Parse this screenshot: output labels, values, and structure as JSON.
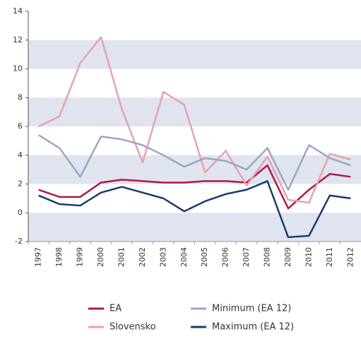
{
  "chart_data": {
    "type": "line",
    "categories": [
      "1997",
      "1998",
      "1999",
      "2000",
      "2001",
      "2002",
      "2003",
      "2004",
      "2005",
      "2006",
      "2007",
      "2008",
      "2009",
      "2010",
      "2011",
      "2012"
    ],
    "series": [
      {
        "name": "EA",
        "color": "#b0174c",
        "values": [
          1.6,
          1.1,
          1.1,
          2.1,
          2.3,
          2.2,
          2.1,
          2.1,
          2.2,
          2.2,
          2.1,
          3.3,
          0.3,
          1.6,
          2.7,
          2.5
        ]
      },
      {
        "name": "Slovensko",
        "color": "#e9a2ab",
        "values": [
          6.0,
          6.7,
          10.4,
          12.2,
          7.2,
          3.5,
          8.4,
          7.5,
          2.8,
          4.3,
          1.9,
          3.9,
          0.9,
          0.7,
          4.1,
          3.7
        ]
      },
      {
        "name": "Minimum (EA 12)",
        "color": "#9ea4c6",
        "values": [
          5.4,
          4.5,
          2.5,
          5.3,
          5.1,
          4.7,
          4.0,
          3.2,
          3.8,
          3.6,
          3.0,
          4.5,
          1.6,
          4.7,
          3.8,
          3.3
        ]
      },
      {
        "name": "Maximum (EA 12)",
        "color": "#1c3a6e",
        "values": [
          1.2,
          0.6,
          0.5,
          1.4,
          1.8,
          1.4,
          1.0,
          0.1,
          0.8,
          1.3,
          1.6,
          2.2,
          -1.7,
          -1.6,
          1.2,
          1.0
        ]
      }
    ],
    "ylim": [
      -2,
      14
    ],
    "yticks": [
      -2,
      0,
      2,
      4,
      6,
      8,
      10,
      12,
      14
    ],
    "bands": true,
    "band_color": "#dfe4ef"
  }
}
